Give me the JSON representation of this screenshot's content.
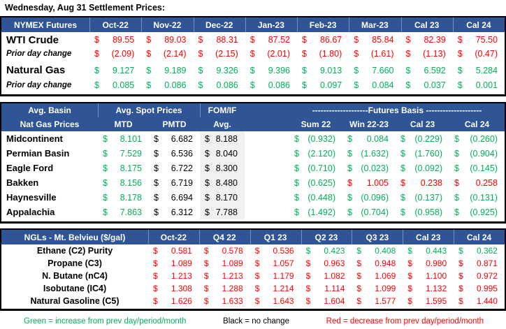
{
  "sym": "$",
  "title": "Wednesday, Aug 31 Settlement Prices:",
  "colors": {
    "header_blue": "#2F5597",
    "increase_green": "#00B05A",
    "decrease_red": "#FF0000",
    "no_change_black": "#000000",
    "fomif_column_gray": "#F1F1F1"
  },
  "nymex": {
    "header": [
      "NYMEX Futures",
      "Oct-22",
      "Nov-22",
      "Dec-22",
      "Jan-23",
      "Feb-23",
      "Mar-23",
      "Cal 23",
      "Cal 24"
    ],
    "rows": [
      {
        "label": "WTI Crude",
        "values": [
          "89.55",
          "89.03",
          "88.31",
          "87.52",
          "86.67",
          "85.84",
          "82.39",
          "75.50"
        ]
      },
      {
        "label": "Prior day change",
        "values": [
          "(2.09)",
          "(2.14)",
          "(2.15)",
          "(2.01)",
          "(1.80)",
          "(1.61)",
          "(1.13)",
          "(0.47)"
        ]
      },
      {
        "label": "Natural Gas",
        "values": [
          "9.127",
          "9.189",
          "9.326",
          "9.396",
          "9.013",
          "7.660",
          "6.592",
          "5.284"
        ]
      },
      {
        "label": "Prior day change",
        "values": [
          "0.085",
          "0.086",
          "0.086",
          "0.086",
          "0.097",
          "0.084",
          "0.037",
          "0.001"
        ]
      }
    ]
  },
  "basin": {
    "header1": {
      "label": "Avg. Basin",
      "spot": "Avg. Spot Prices",
      "fomif": "FOM/IF",
      "basis": "--------------------Futures Basis --------------------"
    },
    "header2": {
      "label": "Nat Gas Prices",
      "mtd": "MTD",
      "pmtd": "PMTD",
      "avg": "Avg.",
      "sum22": "Sum 22",
      "win2223": "Win 22-23",
      "cal23": "Cal 23",
      "cal24": "Cal 24"
    },
    "rows": [
      {
        "label": "Midcontinent",
        "mtd": "8.101",
        "pmtd": "6.682",
        "fomif": "8.188",
        "basis": [
          "(0.932)",
          "0.084",
          "(0.229)",
          "(0.260)"
        ]
      },
      {
        "label": "Permian Basin",
        "mtd": "7.529",
        "pmtd": "6.536",
        "fomif": "8.040",
        "basis": [
          "(2.120)",
          "(1.632)",
          "(1.760)",
          "(0.904)"
        ]
      },
      {
        "label": "Eagle Ford",
        "mtd": "8.175",
        "pmtd": "6.722",
        "fomif": "8.300",
        "basis": [
          "(0.710)",
          "(0.023)",
          "(0.092)",
          "(0.145)"
        ]
      },
      {
        "label": "Bakken",
        "mtd": "8.156",
        "pmtd": "6.719",
        "fomif": "8.480",
        "basis": [
          "(0.625)",
          "1.005",
          "0.238",
          "0.258"
        ]
      },
      {
        "label": "Haynesville",
        "mtd": "8.178",
        "pmtd": "6.694",
        "fomif": "8.170",
        "basis": [
          "(0.448)",
          "(0.096)",
          "(0.137)",
          "(0.131)"
        ]
      },
      {
        "label": "Appalachia",
        "mtd": "7.863",
        "pmtd": "6.312",
        "fomif": "7.788",
        "basis": [
          "(1.492)",
          "(0.704)",
          "(0.958)",
          "(0.925)"
        ]
      }
    ]
  },
  "ngl": {
    "header": [
      "NGLs - Mt. Belvieu ($/gal)",
      "Oct-22",
      "Q4 22",
      "Q1 23",
      "Q2 23",
      "Q3 23",
      "Cal 23",
      "Cal 24"
    ],
    "rows": [
      {
        "label": "Ethane (C2) Purity",
        "values": [
          "0.581",
          "0.578",
          "0.536",
          "0.423",
          "0.408",
          "0.443",
          "0.362"
        ]
      },
      {
        "label": "Propane (C3)",
        "values": [
          "1.089",
          "1.089",
          "1.057",
          "0.963",
          "0.948",
          "0.980",
          "0.871"
        ]
      },
      {
        "label": "N. Butane (nC4)",
        "values": [
          "1.213",
          "1.213",
          "1.179",
          "1.082",
          "1.069",
          "1.100",
          "0.972"
        ]
      },
      {
        "label": "Isobutane (IC4)",
        "values": [
          "1.308",
          "1.288",
          "1.214",
          "1.114",
          "1.099",
          "1.132",
          "0.995"
        ]
      },
      {
        "label": "Natural Gasoline (C5)",
        "values": [
          "1.626",
          "1.633",
          "1.643",
          "1.604",
          "1.577",
          "1.595",
          "1.440"
        ]
      }
    ]
  },
  "legend": {
    "green": "Green = increase from prev day/period/month",
    "black": "Black = no change",
    "red": "Red = decrease from prev day/period/month"
  }
}
